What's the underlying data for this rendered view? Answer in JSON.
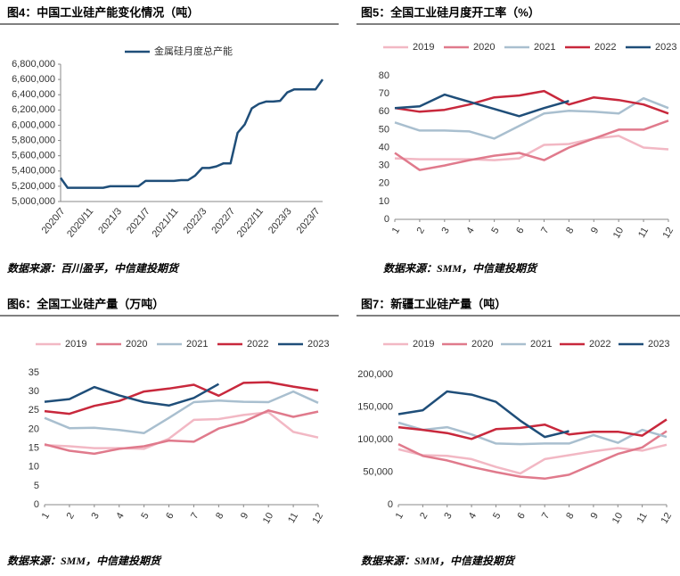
{
  "chart_data": [
    {
      "type": "line",
      "title": "图4：中国工业硅产能变化情况（吨）",
      "note": "数据来源：百川盈孚，中信建投期货",
      "categories": [
        "2020/7",
        null,
        null,
        null,
        "2020/11",
        null,
        null,
        null,
        "2021/3",
        null,
        null,
        null,
        "2021/7",
        null,
        null,
        null,
        "2021/11",
        null,
        null,
        null,
        "2022/3",
        null,
        null,
        null,
        "2022/7",
        null,
        null,
        null,
        "2022/11",
        null,
        null,
        null,
        "2023/3",
        null,
        null,
        null,
        "2023/7",
        null
      ],
      "series": [
        {
          "name": "金属硅月度总产能",
          "color": "#1f4e79",
          "values": [
            5310000,
            5180000,
            5180000,
            5180000,
            5180000,
            5180000,
            5180000,
            5200000,
            5200000,
            5200000,
            5200000,
            5200000,
            5270000,
            5270000,
            5270000,
            5270000,
            5270000,
            5280000,
            5280000,
            5340000,
            5440000,
            5440000,
            5460000,
            5500000,
            5500000,
            5900000,
            6010000,
            6220000,
            6280000,
            6310000,
            6310000,
            6320000,
            6430000,
            6470000,
            6470000,
            6470000,
            6470000,
            6600000
          ]
        }
      ],
      "ylim": [
        5000000,
        6800000
      ],
      "yticks": [
        {
          "value": 5000000,
          "label": "5,000,000"
        },
        {
          "value": 5200000,
          "label": "5,200,000"
        },
        {
          "value": 5400000,
          "label": "5,400,000"
        },
        {
          "value": 5600000,
          "label": "5,600,000"
        },
        {
          "value": 5800000,
          "label": "5,800,000"
        },
        {
          "value": 6000000,
          "label": "6,000,000"
        },
        {
          "value": 6200000,
          "label": "6,200,000"
        },
        {
          "value": 6400000,
          "label": "6,400,000"
        },
        {
          "value": 6600000,
          "label": "6,600,000"
        },
        {
          "value": 6800000,
          "label": "6,800,000"
        }
      ]
    },
    {
      "type": "line",
      "title": "图5：全国工业硅月度开工率（%）",
      "note": "数据来源：SMM，中信建投期货",
      "x": [
        1,
        2,
        3,
        4,
        5,
        6,
        7,
        8,
        9,
        10,
        11,
        12
      ],
      "xlim": [
        1,
        12
      ],
      "xticks": [
        1,
        2,
        3,
        4,
        5,
        6,
        7,
        8,
        9,
        10,
        11,
        12
      ],
      "series": [
        {
          "name": "2019",
          "color": "#f2b8c4",
          "values": [
            34,
            33.5,
            33.5,
            33.5,
            33,
            34,
            41.5,
            42,
            45,
            46.5,
            40,
            39
          ]
        },
        {
          "name": "2020",
          "color": "#e07a8c",
          "values": [
            37,
            27.5,
            30,
            33,
            35.5,
            37,
            33,
            40,
            45,
            50,
            50,
            55
          ]
        },
        {
          "name": "2021",
          "color": "#a9bfcf",
          "values": [
            54,
            49.5,
            49.5,
            49,
            45,
            52,
            59,
            60.5,
            60,
            59,
            67.5,
            62
          ]
        },
        {
          "name": "2022",
          "color": "#c8283c",
          "values": [
            62,
            60,
            61,
            64,
            68,
            69,
            71.5,
            64,
            68,
            66.5,
            64,
            59
          ]
        },
        {
          "name": "2023",
          "color": "#1f4e79",
          "values": [
            62,
            63,
            69.5,
            65.5,
            61.5,
            57.5,
            62,
            66,
            null,
            null,
            null,
            null
          ]
        }
      ],
      "ylim": [
        0,
        80
      ],
      "yticks": [
        0,
        10,
        20,
        30,
        40,
        50,
        60,
        70,
        80
      ]
    },
    {
      "type": "line",
      "title": "图6：全国工业硅产量（万吨）",
      "note": "数据来源：SMM，中信建投期货",
      "x": [
        1,
        2,
        3,
        4,
        5,
        6,
        7,
        8,
        9,
        10,
        11,
        12
      ],
      "xlim": [
        1,
        12
      ],
      "xticks": [
        1,
        2,
        3,
        4,
        5,
        6,
        7,
        8,
        9,
        10,
        11,
        12
      ],
      "series": [
        {
          "name": "2019",
          "color": "#f2b8c4",
          "values": [
            15.8,
            15.5,
            15,
            15,
            14.8,
            17.5,
            22.5,
            22.7,
            23.8,
            24.5,
            19.3,
            17.8
          ]
        },
        {
          "name": "2020",
          "color": "#e07a8c",
          "values": [
            16,
            14.3,
            13.5,
            14.8,
            15.5,
            17,
            16.7,
            20.2,
            22,
            25,
            23.3,
            24.7
          ]
        },
        {
          "name": "2021",
          "color": "#a9bfcf",
          "values": [
            23,
            20.3,
            20.4,
            19.8,
            19,
            23,
            27.2,
            27.6,
            27.3,
            27.2,
            30,
            27
          ]
        },
        {
          "name": "2022",
          "color": "#c8283c",
          "values": [
            24.8,
            24.1,
            26.2,
            27.5,
            30,
            30.8,
            31.8,
            28.9,
            32.3,
            32.5,
            31.3,
            30.3
          ]
        },
        {
          "name": "2023",
          "color": "#1f4e79",
          "values": [
            27.3,
            28,
            31.2,
            29,
            27.2,
            26.3,
            28.3,
            32,
            null,
            null,
            null,
            null
          ]
        }
      ],
      "ylim": [
        0,
        35
      ],
      "yticks": [
        0,
        5,
        10,
        15,
        20,
        25,
        30,
        35
      ]
    },
    {
      "type": "line",
      "title": "图7：新疆工业硅产量（吨）",
      "note": "数据来源：SMM，中信建投期货",
      "x": [
        1,
        2,
        3,
        4,
        5,
        6,
        7,
        8,
        9,
        10,
        11,
        12
      ],
      "xlim": [
        1,
        12
      ],
      "xticks": [
        1,
        2,
        3,
        4,
        5,
        6,
        7,
        8,
        9,
        10,
        11,
        12
      ],
      "series": [
        {
          "name": "2019",
          "color": "#f2b8c4",
          "values": [
            85000,
            76000,
            75000,
            70000,
            58000,
            48000,
            70000,
            76000,
            82000,
            87000,
            83000,
            92000
          ]
        },
        {
          "name": "2020",
          "color": "#e07a8c",
          "values": [
            93000,
            75000,
            68000,
            58000,
            50000,
            43000,
            40000,
            46000,
            62000,
            78000,
            88000,
            113000
          ]
        },
        {
          "name": "2021",
          "color": "#a9bfcf",
          "values": [
            126000,
            115000,
            119000,
            108000,
            94000,
            93000,
            94000,
            94000,
            107000,
            95000,
            115000,
            104000
          ]
        },
        {
          "name": "2022",
          "color": "#c8283c",
          "values": [
            119000,
            115000,
            110000,
            101000,
            116000,
            118000,
            123000,
            108000,
            112000,
            112000,
            106000,
            131000
          ]
        },
        {
          "name": "2023",
          "color": "#1f4e79",
          "values": [
            139000,
            145000,
            174000,
            169000,
            158000,
            129000,
            104000,
            113000,
            null,
            null,
            null,
            null
          ]
        }
      ],
      "ylim": [
        0,
        200000
      ],
      "yticks": [
        0,
        {
          "value": 50000,
          "label": "50,000"
        },
        {
          "value": 100000,
          "label": "100,000"
        },
        {
          "value": 150000,
          "label": "150,000"
        },
        {
          "value": 200000,
          "label": "200,000"
        }
      ]
    }
  ]
}
